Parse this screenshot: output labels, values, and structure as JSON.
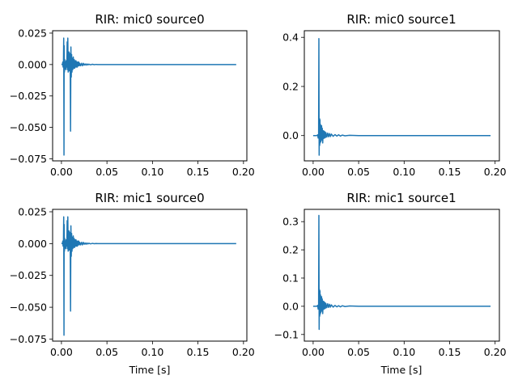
{
  "figure": {
    "background": "#ffffff"
  },
  "chart_data": [
    {
      "type": "line",
      "title": "RIR: mic0 source0",
      "xlabel": "",
      "ylabel": "",
      "xlim": [
        -0.0097,
        0.2037
      ],
      "ylim": [
        -0.0766,
        0.0269
      ],
      "xticks": [
        0.0,
        0.05,
        0.1,
        0.15,
        0.2
      ],
      "xtick_labels": [
        "0.00",
        "0.05",
        "0.10",
        "0.15",
        "0.20"
      ],
      "yticks": [
        -0.075,
        -0.05,
        -0.025,
        0.0,
        0.025
      ],
      "ytick_labels": [
        "−0.075",
        "−0.050",
        "−0.025",
        "0.000",
        "0.025"
      ],
      "grid": false,
      "color": "#1f77b4",
      "series": [
        {
          "x": [
            0.0,
            0.001,
            0.0015,
            0.0018,
            0.002,
            0.0022,
            0.0025,
            0.0028,
            0.003,
            0.0033,
            0.0036,
            0.004,
            0.0044,
            0.0048,
            0.0052,
            0.0056,
            0.006,
            0.0063,
            0.0066,
            0.007,
            0.0074,
            0.0078,
            0.008,
            0.0083,
            0.0086,
            0.009,
            0.0093,
            0.0096,
            0.01,
            0.0104,
            0.0108,
            0.0112,
            0.0116,
            0.012,
            0.0125,
            0.013,
            0.0135,
            0.014,
            0.0145,
            0.015,
            0.0155,
            0.016,
            0.0165,
            0.017,
            0.0175,
            0.018,
            0.0185,
            0.019,
            0.0195,
            0.02,
            0.021,
            0.022,
            0.023,
            0.024,
            0.025,
            0.026,
            0.027,
            0.028,
            0.029,
            0.03,
            0.032,
            0.034,
            0.036,
            0.038,
            0.04,
            0.045,
            0.05,
            0.06,
            0.08,
            0.1,
            0.15,
            0.192
          ],
          "y": [
            0.0,
            0.0,
            0.002,
            -0.002,
            0.001,
            0.0,
            0.021,
            -0.072,
            0.015,
            -0.006,
            0.004,
            -0.003,
            0.002,
            -0.004,
            0.003,
            -0.002,
            0.001,
            0.018,
            -0.004,
            0.021,
            -0.006,
            0.005,
            -0.005,
            0.01,
            -0.005,
            0.009,
            -0.004,
            0.006,
            -0.053,
            0.014,
            -0.01,
            0.008,
            -0.006,
            0.005,
            -0.004,
            0.006,
            -0.003,
            0.004,
            -0.003,
            0.003,
            -0.002,
            0.003,
            -0.002,
            0.002,
            -0.002,
            0.002,
            -0.001,
            0.002,
            -0.001,
            0.001,
            -0.001,
            0.001,
            -0.001,
            0.001,
            -0.0005,
            0.0005,
            -0.0005,
            0.0005,
            -0.0003,
            0.0003,
            -0.0002,
            0.0002,
            -0.0001,
            0.0001,
            0.0,
            0.0,
            0.0,
            0.0,
            0.0,
            0.0,
            0.0,
            0.0
          ]
        }
      ]
    },
    {
      "type": "line",
      "title": "RIR: mic0 source1",
      "xlabel": "",
      "ylabel": "",
      "xlim": [
        -0.0097,
        0.2047
      ],
      "ylim": [
        -0.103,
        0.427
      ],
      "xticks": [
        0.0,
        0.05,
        0.1,
        0.15,
        0.2
      ],
      "xtick_labels": [
        "0.00",
        "0.05",
        "0.10",
        "0.15",
        "0.20"
      ],
      "yticks": [
        0.0,
        0.2,
        0.4
      ],
      "ytick_labels": [
        "0.0",
        "0.2",
        "0.4"
      ],
      "grid": false,
      "color": "#1f77b4",
      "series": [
        {
          "x": [
            0.0,
            0.004,
            0.005,
            0.0055,
            0.006,
            0.0063,
            0.0066,
            0.0069,
            0.0072,
            0.0075,
            0.0078,
            0.0081,
            0.0084,
            0.0087,
            0.009,
            0.0093,
            0.0096,
            0.01,
            0.0105,
            0.011,
            0.0115,
            0.012,
            0.0125,
            0.013,
            0.0135,
            0.014,
            0.015,
            0.016,
            0.017,
            0.018,
            0.019,
            0.02,
            0.022,
            0.024,
            0.026,
            0.028,
            0.03,
            0.032,
            0.035,
            0.04,
            0.05,
            0.07,
            0.1,
            0.15,
            0.195
          ],
          "y": [
            0.0,
            0.0,
            0.003,
            -0.01,
            0.005,
            0.395,
            -0.08,
            0.07,
            -0.04,
            0.065,
            -0.03,
            0.045,
            -0.025,
            0.035,
            -0.02,
            0.04,
            -0.015,
            0.03,
            -0.03,
            0.02,
            -0.012,
            0.018,
            -0.01,
            0.015,
            -0.008,
            0.012,
            -0.006,
            0.01,
            -0.005,
            0.008,
            -0.004,
            0.006,
            -0.003,
            0.004,
            -0.002,
            0.003,
            -0.002,
            0.002,
            -0.001,
            0.001,
            0.0,
            0.0,
            0.0,
            0.0,
            0.0
          ]
        }
      ]
    },
    {
      "type": "line",
      "title": "RIR: mic1 source0",
      "xlabel": "Time [s]",
      "ylabel": "",
      "xlim": [
        -0.0097,
        0.2037
      ],
      "ylim": [
        -0.0766,
        0.0269
      ],
      "xticks": [
        0.0,
        0.05,
        0.1,
        0.15,
        0.2
      ],
      "xtick_labels": [
        "0.00",
        "0.05",
        "0.10",
        "0.15",
        "0.20"
      ],
      "yticks": [
        -0.075,
        -0.05,
        -0.025,
        0.0,
        0.025
      ],
      "ytick_labels": [
        "−0.075",
        "−0.050",
        "−0.025",
        "0.000",
        "0.025"
      ],
      "grid": false,
      "color": "#1f77b4",
      "series": [
        {
          "x": [
            0.0,
            0.001,
            0.0015,
            0.0018,
            0.002,
            0.0022,
            0.0025,
            0.0028,
            0.003,
            0.0033,
            0.0036,
            0.004,
            0.0044,
            0.0048,
            0.0052,
            0.0056,
            0.006,
            0.0063,
            0.0066,
            0.007,
            0.0074,
            0.0078,
            0.008,
            0.0083,
            0.0086,
            0.009,
            0.0093,
            0.0096,
            0.01,
            0.0104,
            0.0108,
            0.0112,
            0.0116,
            0.012,
            0.0125,
            0.013,
            0.0135,
            0.014,
            0.0145,
            0.015,
            0.0155,
            0.016,
            0.0165,
            0.017,
            0.0175,
            0.018,
            0.0185,
            0.019,
            0.0195,
            0.02,
            0.021,
            0.022,
            0.023,
            0.024,
            0.025,
            0.026,
            0.027,
            0.028,
            0.029,
            0.03,
            0.032,
            0.034,
            0.036,
            0.038,
            0.04,
            0.045,
            0.05,
            0.06,
            0.08,
            0.1,
            0.15,
            0.192
          ],
          "y": [
            0.0,
            0.0,
            0.002,
            -0.002,
            0.001,
            0.0,
            0.021,
            -0.072,
            0.015,
            -0.006,
            0.004,
            -0.003,
            0.002,
            -0.004,
            0.003,
            -0.002,
            0.001,
            0.018,
            -0.004,
            0.021,
            -0.006,
            0.005,
            -0.005,
            0.01,
            -0.005,
            0.009,
            -0.004,
            0.006,
            -0.053,
            0.014,
            -0.01,
            0.008,
            -0.006,
            0.005,
            -0.004,
            0.006,
            -0.003,
            0.004,
            -0.003,
            0.003,
            -0.002,
            0.003,
            -0.002,
            0.002,
            -0.002,
            0.002,
            -0.001,
            0.002,
            -0.001,
            0.001,
            -0.001,
            0.001,
            -0.001,
            0.001,
            -0.0005,
            0.0005,
            -0.0005,
            0.0005,
            -0.0003,
            0.0003,
            -0.0002,
            0.0002,
            -0.0001,
            0.0001,
            0.0,
            0.0,
            0.0,
            0.0,
            0.0,
            0.0,
            0.0,
            0.0
          ]
        }
      ]
    },
    {
      "type": "line",
      "title": "RIR: mic1 source1",
      "xlabel": "Time [s]",
      "ylabel": "",
      "xlim": [
        -0.0097,
        0.2047
      ],
      "ylim": [
        -0.1235,
        0.3435
      ],
      "xticks": [
        0.0,
        0.05,
        0.1,
        0.15,
        0.2
      ],
      "xtick_labels": [
        "0.00",
        "0.05",
        "0.10",
        "0.15",
        "0.20"
      ],
      "yticks": [
        -0.1,
        0.0,
        0.1,
        0.2,
        0.3
      ],
      "ytick_labels": [
        "−0.1",
        "0.0",
        "0.1",
        "0.2",
        "0.3"
      ],
      "grid": false,
      "color": "#1f77b4",
      "series": [
        {
          "x": [
            0.0,
            0.004,
            0.005,
            0.0055,
            0.006,
            0.0063,
            0.0066,
            0.0069,
            0.0072,
            0.0075,
            0.0078,
            0.0081,
            0.0084,
            0.0087,
            0.009,
            0.0093,
            0.0096,
            0.01,
            0.0105,
            0.011,
            0.0115,
            0.012,
            0.0125,
            0.013,
            0.0135,
            0.014,
            0.015,
            0.016,
            0.017,
            0.018,
            0.019,
            0.02,
            0.022,
            0.024,
            0.026,
            0.028,
            0.03,
            0.032,
            0.035,
            0.04,
            0.05,
            0.07,
            0.1,
            0.15,
            0.195
          ],
          "y": [
            0.0,
            0.0,
            0.003,
            -0.01,
            0.005,
            0.322,
            -0.082,
            0.06,
            -0.035,
            0.055,
            -0.028,
            0.04,
            -0.022,
            0.03,
            -0.018,
            0.034,
            -0.013,
            0.026,
            -0.026,
            0.018,
            -0.011,
            0.016,
            -0.009,
            0.013,
            -0.007,
            0.01,
            -0.005,
            0.009,
            -0.004,
            0.007,
            -0.003,
            0.005,
            -0.003,
            0.003,
            -0.002,
            0.002,
            -0.002,
            0.002,
            -0.001,
            0.001,
            0.0,
            0.0,
            0.0,
            0.0,
            0.0
          ]
        }
      ]
    }
  ]
}
